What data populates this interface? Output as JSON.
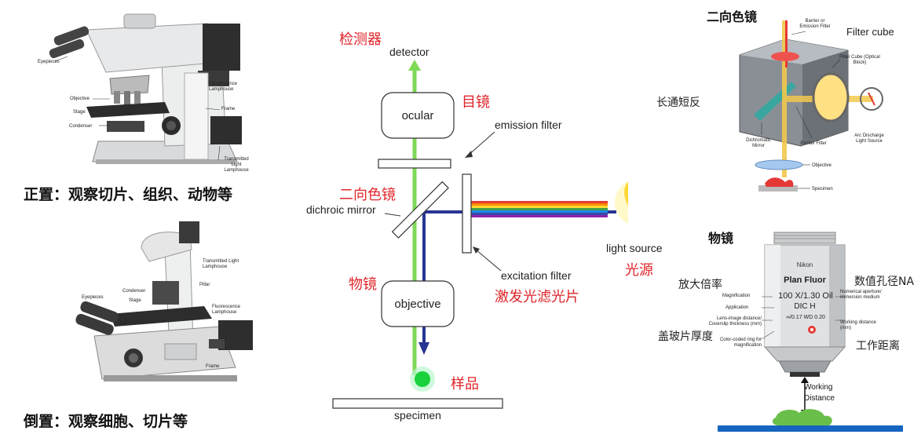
{
  "upright": {
    "caption": "正置：观察切片、组织、动物等",
    "labels": {
      "eyepieces": "Eyepieces",
      "objective": "Objective",
      "stage": "Stage",
      "condenser": "Condenser",
      "fluor": "Fluorescence Lamphouse",
      "frame": "Frame",
      "transmitted": "Transmitted Light Lamphouse"
    }
  },
  "inverted": {
    "caption": "倒置：观察细胞、切片等",
    "labels": {
      "transmitted": "Transmitted Light Lamphouse",
      "pillar": "Pillar",
      "condenser": "Condenser",
      "stage": "Stage",
      "eyepieces": "Eyepieces",
      "fluor": "Fluorescence Lamphouse",
      "frame": "Frame"
    }
  },
  "diagram": {
    "detector_cn": "检测器",
    "detector": "detector",
    "ocular": "ocular",
    "ocular_cn": "目镜",
    "emission_filter": "emission filter",
    "dichroic_cn": "二向色镜",
    "dichroic": "dichroic mirror",
    "objective_cn": "物镜",
    "objective": "objective",
    "light_source": "light source",
    "light_source_cn": "光源",
    "excitation_filter": "excitation filter",
    "excitation_filter_cn": "激发光滤光片",
    "sample_cn": "样品",
    "specimen": "specimen"
  },
  "cube": {
    "title": "二向色镜",
    "filter_cube": "Filter cube",
    "longpass": "长通短反",
    "labels": {
      "barrier": "Barrier or Emission Filter",
      "cube": "Filter Cube (Optical Block)",
      "dichromatic": "Dichromatic Mirror",
      "exciter": "Exciter Filter",
      "arc": "Arc Discharge Light Source",
      "objective": "Objective",
      "specimen": "Specimen"
    }
  },
  "lens": {
    "title": "物镜",
    "brand": "Nikon",
    "model": "Plan Fluor",
    "magnification_marking": "100 X/1.30 Oil",
    "dic": "DIC H",
    "thickness_marking": "∞/0.17  WD 0.20",
    "magnification_cn": "放大倍率",
    "na_cn": "数值孔径NA",
    "coverslip_cn": "盖玻片厚度",
    "wd_cn": "工作距离",
    "magnification_en": "Magnification",
    "application_en": "Application",
    "lens_image_en": "Lens-image distance/ Coverslip thickness (mm)",
    "color_ring_en": "Color-coded ring for magnification",
    "na_en": "Numerical aperture/ immersion medium",
    "wd_en": "Working distance (mm)",
    "working_distance": "Working Distance"
  },
  "colors": {
    "red_label": "#e0242a",
    "green_beam": "#7ed957",
    "blue_beam": "#283593",
    "stage_blue": "#1565c0",
    "sample_green": "#6abf4b"
  }
}
